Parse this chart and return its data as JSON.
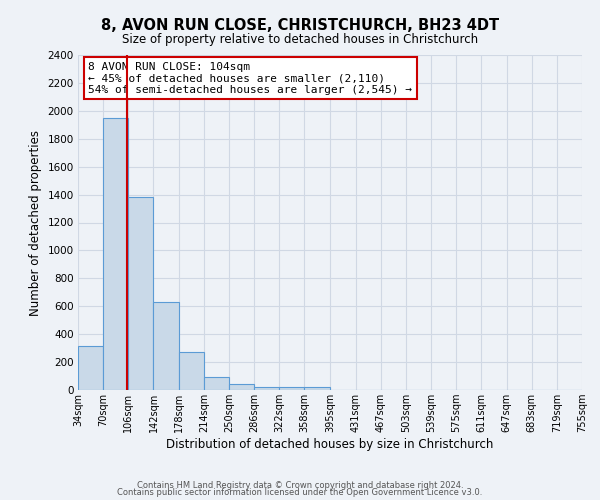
{
  "title": "8, AVON RUN CLOSE, CHRISTCHURCH, BH23 4DT",
  "subtitle": "Size of property relative to detached houses in Christchurch",
  "xlabel": "Distribution of detached houses by size in Christchurch",
  "ylabel": "Number of detached properties",
  "footer_line1": "Contains HM Land Registry data © Crown copyright and database right 2024.",
  "footer_line2": "Contains public sector information licensed under the Open Government Licence v3.0.",
  "bin_labels": [
    "34sqm",
    "70sqm",
    "106sqm",
    "142sqm",
    "178sqm",
    "214sqm",
    "250sqm",
    "286sqm",
    "322sqm",
    "358sqm",
    "395sqm",
    "431sqm",
    "467sqm",
    "503sqm",
    "539sqm",
    "575sqm",
    "611sqm",
    "647sqm",
    "683sqm",
    "719sqm",
    "755sqm"
  ],
  "bar_values": [
    315,
    1950,
    1380,
    630,
    275,
    95,
    45,
    25,
    20,
    18,
    0,
    0,
    0,
    0,
    0,
    0,
    0,
    0,
    0,
    0
  ],
  "bin_edges": [
    34,
    70,
    106,
    142,
    178,
    214,
    250,
    286,
    322,
    358,
    395,
    431,
    467,
    503,
    539,
    575,
    611,
    647,
    683,
    719,
    755
  ],
  "bar_color": "#c9d9e8",
  "bar_edge_color": "#5b9bd5",
  "grid_color": "#d0d8e4",
  "background_color": "#eef2f7",
  "vline_x": 104,
  "vline_color": "#cc0000",
  "annotation_line1": "8 AVON RUN CLOSE: 104sqm",
  "annotation_line2": "← 45% of detached houses are smaller (2,110)",
  "annotation_line3": "54% of semi-detached houses are larger (2,545) →",
  "annotation_box_color": "#ffffff",
  "annotation_box_edge_color": "#cc0000",
  "ylim": [
    0,
    2400
  ],
  "yticks": [
    0,
    200,
    400,
    600,
    800,
    1000,
    1200,
    1400,
    1600,
    1800,
    2000,
    2200,
    2400
  ]
}
